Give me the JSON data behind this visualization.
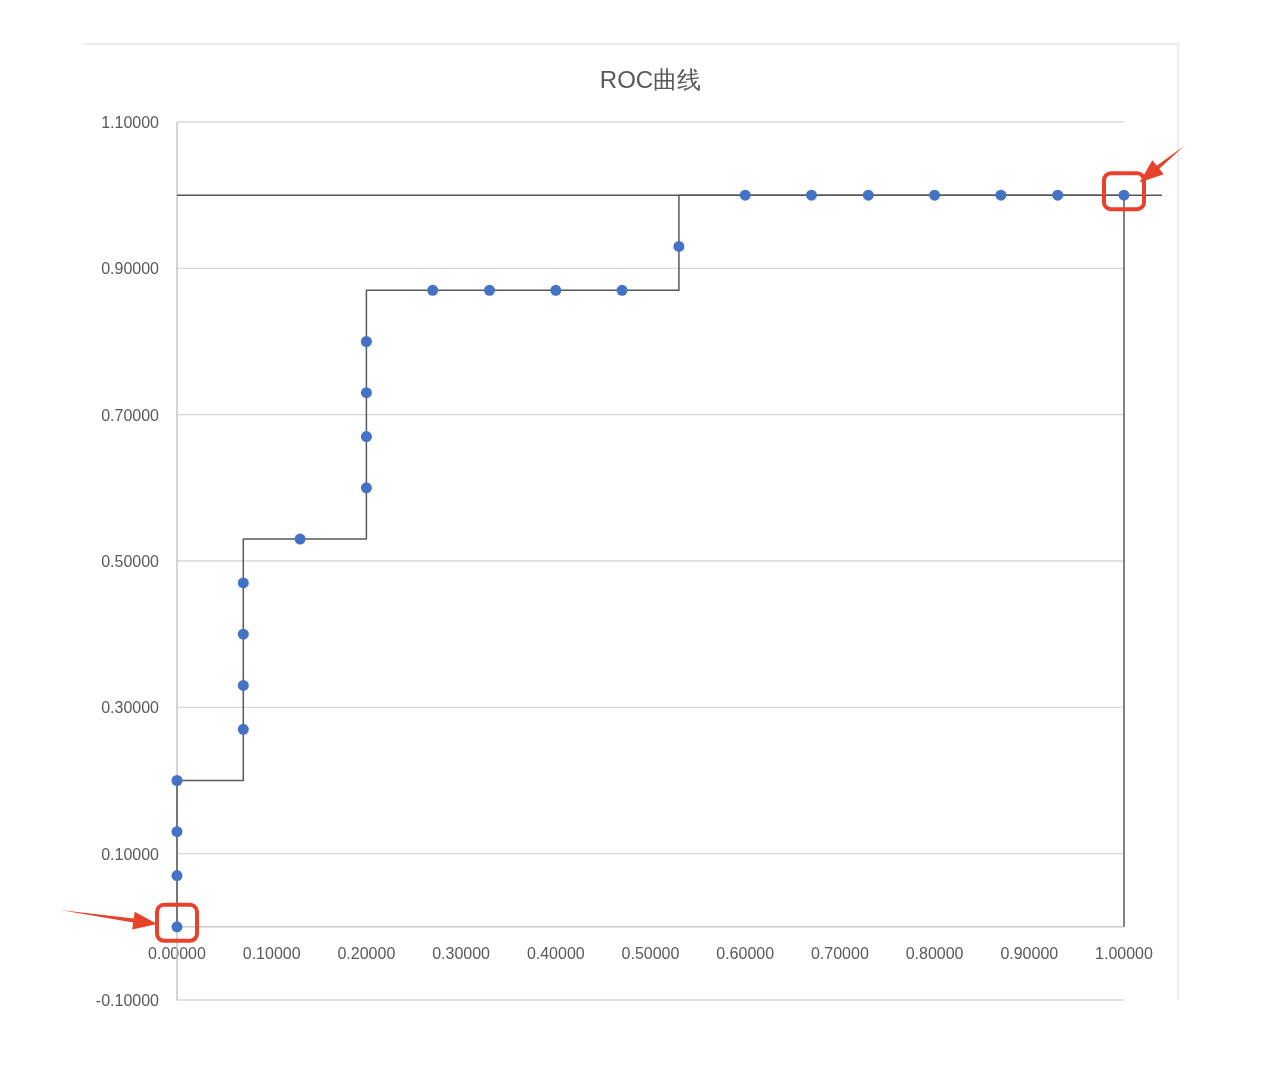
{
  "chart_data": {
    "type": "scatter",
    "title": "ROC曲线",
    "series": [
      {
        "type": "line",
        "color": "#595959",
        "marker": "none",
        "x": [
          0,
          0,
          0.07,
          0.07,
          0.2,
          0.2,
          0.53,
          0.53,
          1,
          1
        ],
        "values": [
          0,
          0.2,
          0.2,
          0.53,
          0.53,
          0.87,
          0.87,
          1,
          1,
          0
        ]
      },
      {
        "color": "#4472c4",
        "marker": "circle",
        "x": [
          0,
          0,
          0,
          0,
          0.07,
          0.07,
          0.07,
          0.07,
          0.13,
          0.2,
          0.2,
          0.2,
          0.2,
          0.27,
          0.33,
          0.4,
          0.47,
          0.53,
          0.6,
          0.67,
          0.73,
          0.8,
          0.87,
          0.93,
          1
        ],
        "values": [
          0,
          0.07,
          0.13,
          0.2,
          0.27,
          0.33,
          0.4,
          0.47,
          0.53,
          0.6,
          0.67,
          0.73,
          0.8,
          0.87,
          0.87,
          0.87,
          0.87,
          0.93,
          1,
          1,
          1,
          1,
          1,
          1,
          1
        ]
      }
    ],
    "xlim": [
      0,
      1
    ],
    "ylim": [
      -0.1,
      1.1
    ],
    "xticks": [
      {
        "value": 0,
        "label": "0.00000"
      },
      {
        "value": 0.1,
        "label": "0.10000"
      },
      {
        "value": 0.2,
        "label": "0.20000"
      },
      {
        "value": 0.3,
        "label": "0.30000"
      },
      {
        "value": 0.4,
        "label": "0.40000"
      },
      {
        "value": 0.5,
        "label": "0.50000"
      },
      {
        "value": 0.6,
        "label": "0.60000"
      },
      {
        "value": 0.7,
        "label": "0.70000"
      },
      {
        "value": 0.8,
        "label": "0.80000"
      },
      {
        "value": 0.9,
        "label": "0.90000"
      },
      {
        "value": 1,
        "label": "1.00000"
      }
    ],
    "yticks": [
      {
        "value": -0.1,
        "label": "-0.10000"
      },
      {
        "value": 0.1,
        "label": "0.10000"
      },
      {
        "value": 0.3,
        "label": "0.30000"
      },
      {
        "value": 0.5,
        "label": "0.50000"
      },
      {
        "value": 0.7,
        "label": "0.70000"
      },
      {
        "value": 0.9,
        "label": "0.90000"
      },
      {
        "value": 1.1,
        "label": "1.10000"
      }
    ],
    "grid": "y",
    "ref_lines": [
      {
        "axis": "y",
        "value": 1,
        "color": "#595959"
      }
    ]
  }
}
